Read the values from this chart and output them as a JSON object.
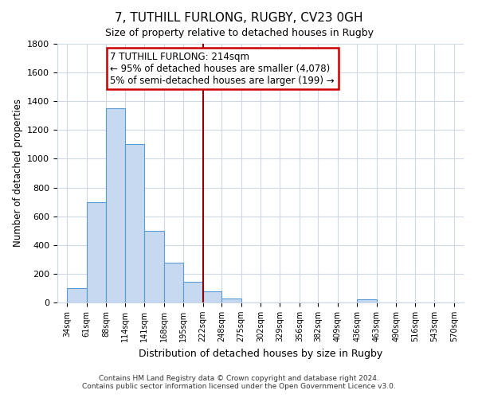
{
  "title": "7, TUTHILL FURLONG, RUGBY, CV23 0GH",
  "subtitle": "Size of property relative to detached houses in Rugby",
  "xlabel": "Distribution of detached houses by size in Rugby",
  "ylabel": "Number of detached properties",
  "bar_edges": [
    34,
    61,
    88,
    114,
    141,
    168,
    195,
    222,
    248,
    275,
    302,
    329,
    356,
    382,
    409,
    436,
    463,
    490,
    516,
    543,
    570
  ],
  "bar_heights": [
    100,
    700,
    1350,
    1100,
    500,
    275,
    145,
    75,
    30,
    0,
    0,
    0,
    0,
    0,
    0,
    20,
    0,
    0,
    0,
    0
  ],
  "bar_color": "#c6d9f0",
  "bar_edge_color": "#5b9bd5",
  "vline_x": 222,
  "vline_color": "#8b0000",
  "annotation_title": "7 TUTHILL FURLONG: 214sqm",
  "annotation_line1": "← 95% of detached houses are smaller (4,078)",
  "annotation_line2": "5% of semi-detached houses are larger (199) →",
  "annotation_box_color": "#ffffff",
  "annotation_box_edgecolor": "#cc0000",
  "ylim": [
    0,
    1800
  ],
  "yticks": [
    0,
    200,
    400,
    600,
    800,
    1000,
    1200,
    1400,
    1600,
    1800
  ],
  "tick_labels": [
    "34sqm",
    "61sqm",
    "88sqm",
    "114sqm",
    "141sqm",
    "168sqm",
    "195sqm",
    "222sqm",
    "248sqm",
    "275sqm",
    "302sqm",
    "329sqm",
    "356sqm",
    "382sqm",
    "409sqm",
    "436sqm",
    "463sqm",
    "490sqm",
    "516sqm",
    "543sqm",
    "570sqm"
  ],
  "footer_line1": "Contains HM Land Registry data © Crown copyright and database right 2024.",
  "footer_line2": "Contains public sector information licensed under the Open Government Licence v3.0.",
  "background_color": "#ffffff",
  "grid_color": "#d0d8e8"
}
